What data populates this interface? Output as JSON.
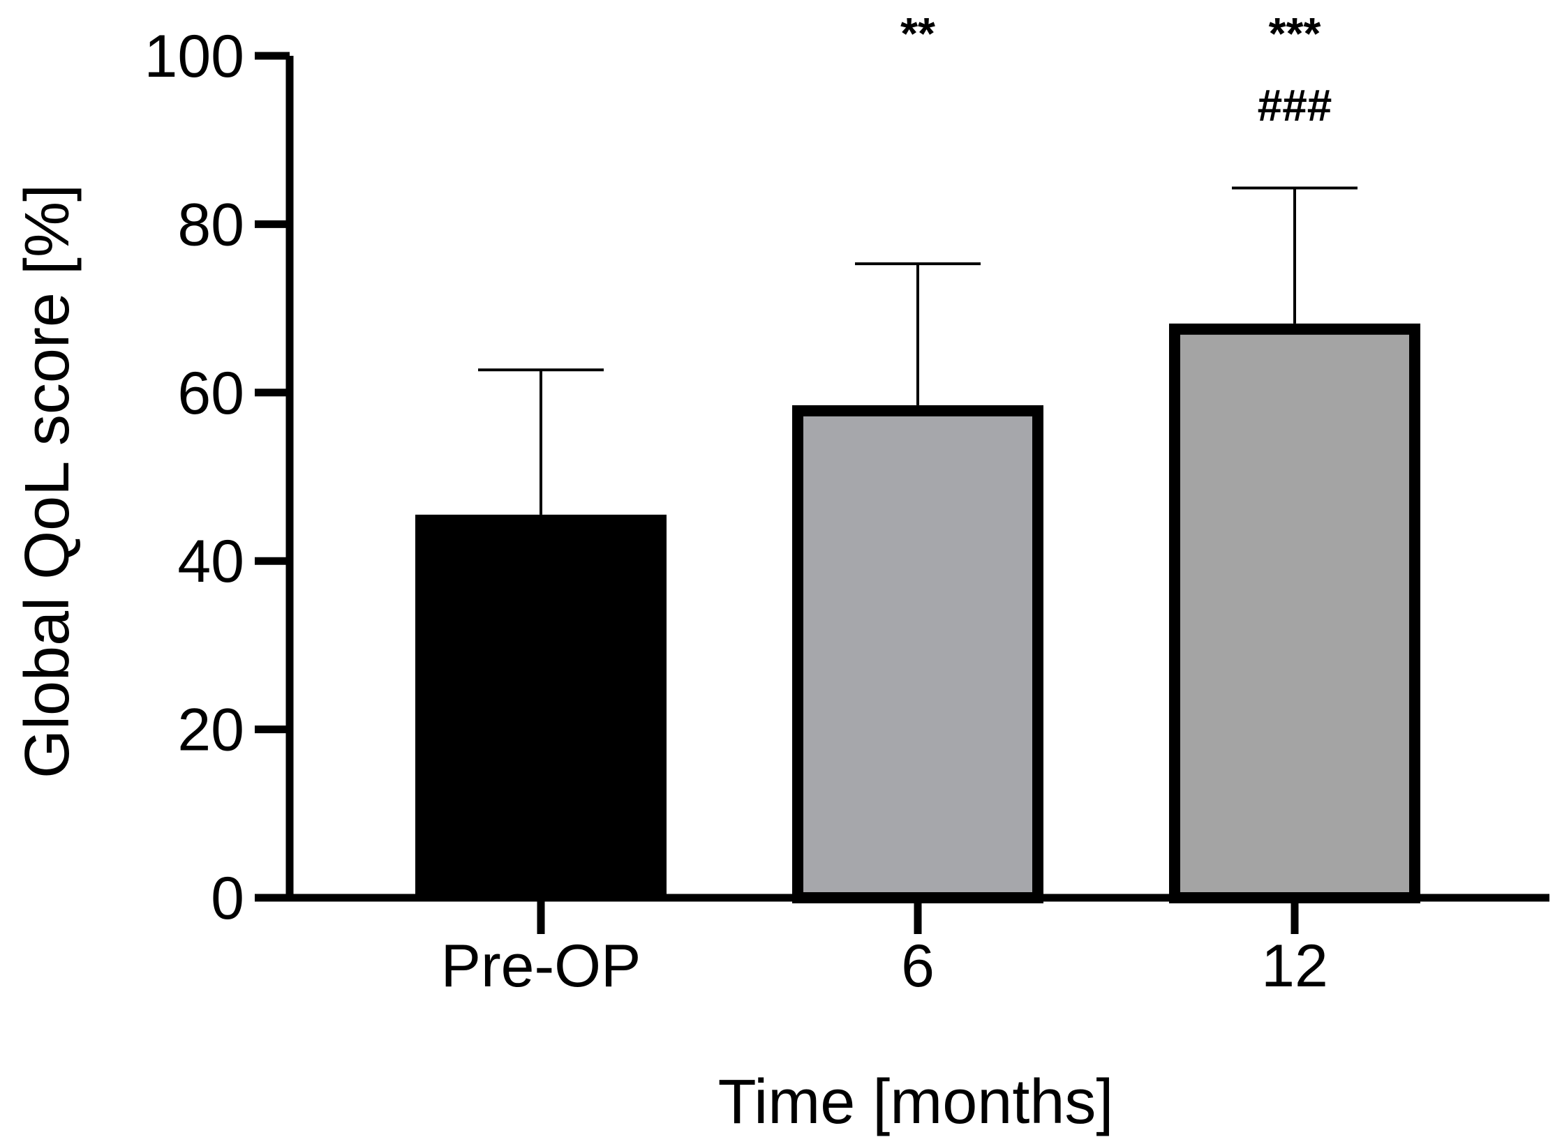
{
  "chart_data": {
    "type": "bar",
    "title": "",
    "xlabel": "Time [months]",
    "ylabel": "Global QoL score [%]",
    "ylim": [
      0,
      100
    ],
    "yticks": [
      0,
      20,
      40,
      60,
      80,
      100
    ],
    "ytick_labels": [
      "0",
      "20",
      "40",
      "60",
      "80",
      "100"
    ],
    "categories": [
      "Pre-OP",
      "6",
      "12"
    ],
    "values": [
      45.5,
      58.5,
      68.2
    ],
    "error_upper": [
      62.7,
      75.3,
      84.3
    ],
    "bar_fill": [
      "#000000",
      "#a6a7ab",
      "#a4a4a4"
    ],
    "bar_stroke": "#000000",
    "significance": [
      {
        "category": "6",
        "lines": [
          "**"
        ]
      },
      {
        "category": "12",
        "lines": [
          "***",
          "###"
        ]
      }
    ]
  }
}
